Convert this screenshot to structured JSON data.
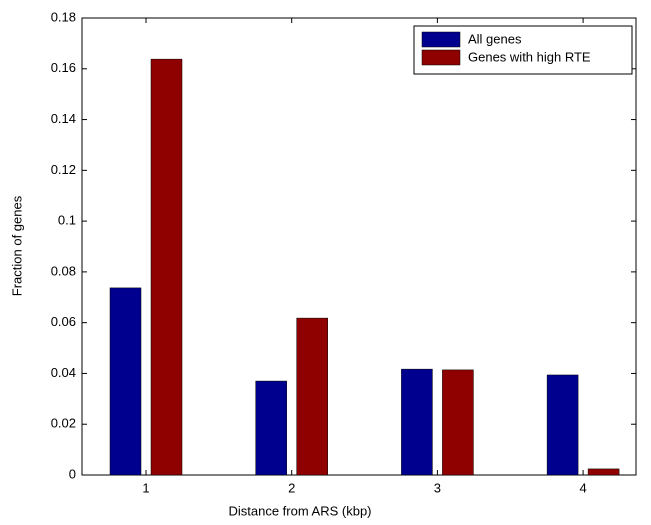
{
  "chart_data": {
    "type": "bar",
    "x_label": "Distance from ARS (kbp)",
    "y_label": "Fraction of genes",
    "categories": [
      "1",
      "2",
      "3",
      "4"
    ],
    "series": [
      {
        "name": "All genes",
        "color": "#00008f",
        "values": [
          0.0737,
          0.037,
          0.0417,
          0.0394
        ]
      },
      {
        "name": "Genes with high RTE",
        "color": "#8f0000",
        "values": [
          0.1638,
          0.0618,
          0.0414,
          0.0024
        ]
      }
    ],
    "ylim": [
      0,
      0.18
    ],
    "yticks": [
      0,
      0.02,
      0.04,
      0.06,
      0.08,
      0.1,
      0.12,
      0.14,
      0.16,
      0.18
    ],
    "legend": "upper right"
  }
}
